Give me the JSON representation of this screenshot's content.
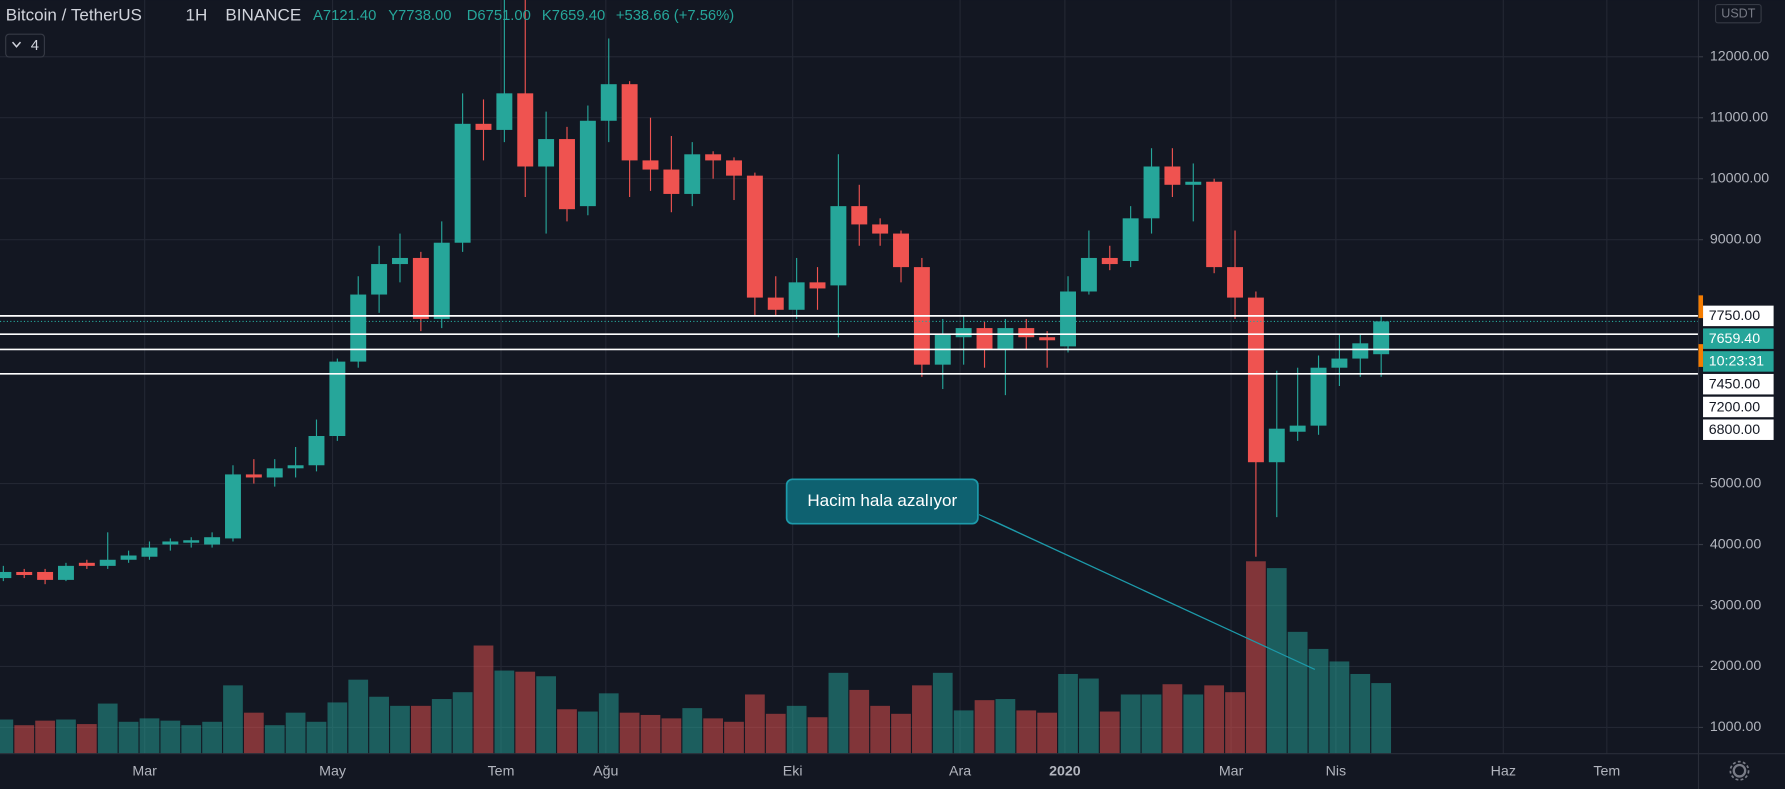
{
  "chart_data": {
    "type": "candlestick",
    "symbol": "Bitcoin / TetherUS",
    "interval": "1H",
    "exchange": "BINANCE",
    "ohlc_labels": [
      "A7121.40",
      "Y7738.00",
      "D6751.00",
      "K7659.40"
    ],
    "change": "+538.66 (+7.56%)",
    "indicator_count": 4,
    "currency": "USDT",
    "annotation": "Hacim hala azalıyor",
    "countdown": "10:23:31",
    "up_color": "#26a69a",
    "down_color": "#ef5350",
    "open": [
      3450,
      3550,
      3550,
      3420,
      3700,
      3650,
      3750,
      3800,
      4000,
      4030,
      4000,
      4100,
      5150,
      5100,
      5250,
      5300,
      5780,
      7000,
      8100,
      8600,
      8700,
      7700,
      8950,
      10900,
      10800,
      11400,
      10200,
      10650,
      9550,
      10950,
      11550,
      10300,
      10150,
      9750,
      10400,
      10300,
      10050,
      8050,
      7850,
      8300,
      8250,
      9550,
      9250,
      9100,
      8550,
      6950,
      7400,
      7550,
      7200,
      7550,
      7400,
      7250,
      8150,
      8700,
      8650,
      9350,
      10200,
      9900,
      9950,
      8550,
      8050,
      5350,
      5850,
      5950,
      6900,
      7050,
      7121.4
    ],
    "high": [
      3650,
      3600,
      3600,
      3700,
      3750,
      4200,
      3900,
      4050,
      4100,
      4120,
      4200,
      5300,
      5400,
      5400,
      5600,
      6050,
      7050,
      8400,
      8900,
      9100,
      8800,
      9300,
      11400,
      11300,
      12950,
      13000,
      11100,
      10850,
      11200,
      12300,
      11600,
      11000,
      10700,
      10600,
      10450,
      10350,
      10100,
      8400,
      8700,
      8550,
      10400,
      9900,
      9350,
      9150,
      8700,
      7700,
      7750,
      7650,
      7700,
      7700,
      7500,
      8400,
      9150,
      8900,
      9550,
      10500,
      10500,
      10250,
      10000,
      9150,
      8150,
      6850,
      6900,
      7100,
      7450,
      7450,
      7738
    ],
    "low": [
      3400,
      3450,
      3350,
      3400,
      3600,
      3600,
      3700,
      3750,
      3900,
      3950,
      3950,
      4050,
      5000,
      4950,
      5100,
      5200,
      5700,
      6900,
      7800,
      8300,
      7500,
      7550,
      8800,
      10300,
      10600,
      9700,
      9100,
      9300,
      9400,
      10600,
      9700,
      9800,
      9450,
      9550,
      10000,
      9650,
      7750,
      7750,
      7700,
      7850,
      7400,
      8900,
      8900,
      8300,
      6750,
      6550,
      6950,
      6900,
      6450,
      7200,
      6900,
      7150,
      8100,
      8500,
      8550,
      9100,
      9700,
      9300,
      8450,
      7700,
      3800,
      4450,
      5700,
      5800,
      6600,
      6750,
      6751
    ],
    "close": [
      3550,
      3500,
      3420,
      3650,
      3650,
      3750,
      3820,
      3950,
      4050,
      4070,
      4120,
      5150,
      5100,
      5250,
      5300,
      5780,
      7000,
      8100,
      8600,
      8700,
      7700,
      8950,
      10900,
      10800,
      11400,
      10200,
      10650,
      9500,
      10950,
      11550,
      10300,
      10150,
      9750,
      10400,
      10300,
      10050,
      8050,
      7850,
      8300,
      8200,
      9550,
      9250,
      9100,
      8550,
      6950,
      7450,
      7550,
      7200,
      7550,
      7400,
      7350,
      8150,
      8700,
      8600,
      9350,
      10200,
      9900,
      9950,
      8550,
      8050,
      5350,
      5900,
      5950,
      6900,
      7050,
      7300,
      7659.4
    ],
    "volume": [
      30,
      25,
      29,
      30,
      26,
      44,
      28,
      31,
      29,
      25,
      28,
      60,
      36,
      25,
      36,
      28,
      45,
      65,
      50,
      42,
      42,
      48,
      54,
      95,
      73,
      72,
      68,
      39,
      37,
      53,
      36,
      34,
      31,
      40,
      31,
      28,
      52,
      35,
      42,
      32,
      71,
      56,
      42,
      35,
      60,
      71,
      38,
      47,
      48,
      38,
      36,
      70,
      66,
      37,
      52,
      52,
      61,
      52,
      60,
      54,
      169,
      163,
      107,
      92,
      81,
      70,
      62
    ],
    "ylim": [
      570,
      12930
    ],
    "yticks": [
      {
        "value": 1000,
        "label": "1000.00"
      },
      {
        "value": 2000,
        "label": "2000.00"
      },
      {
        "value": 3000,
        "label": "3000.00"
      },
      {
        "value": 4000,
        "label": "4000.00"
      },
      {
        "value": 5000,
        "label": "5000.00"
      },
      {
        "value": 9000,
        "label": "9000.00"
      },
      {
        "value": 10000,
        "label": "10000.00"
      },
      {
        "value": 11000,
        "label": "11000.00"
      },
      {
        "value": 12000,
        "label": "12000.00"
      }
    ],
    "xlim": [
      -0.16,
      81.2
    ],
    "xticks": [
      {
        "value": 6.77,
        "label": "Mar"
      },
      {
        "value": 15.77,
        "label": "May"
      },
      {
        "value": 23.84,
        "label": "Tem"
      },
      {
        "value": 28.86,
        "label": "Ağu"
      },
      {
        "value": 37.81,
        "label": "Eki"
      },
      {
        "value": 45.83,
        "label": "Ara"
      },
      {
        "value": 50.85,
        "label": "2020"
      },
      {
        "value": 58.81,
        "label": "Mar"
      },
      {
        "value": 63.83,
        "label": "Nis"
      },
      {
        "value": 71.85,
        "label": "Haz"
      },
      {
        "value": 76.81,
        "label": "Tem"
      }
    ],
    "price_lines": [
      {
        "value": 7750,
        "label": "7750.00"
      },
      {
        "value": 7450,
        "label": "7450.00"
      },
      {
        "value": 7200,
        "label": "7200.00"
      },
      {
        "value": 6800,
        "label": "6800.00"
      }
    ],
    "last_price": {
      "value": 7659.4,
      "label": "7659.40"
    },
    "grid": true
  }
}
